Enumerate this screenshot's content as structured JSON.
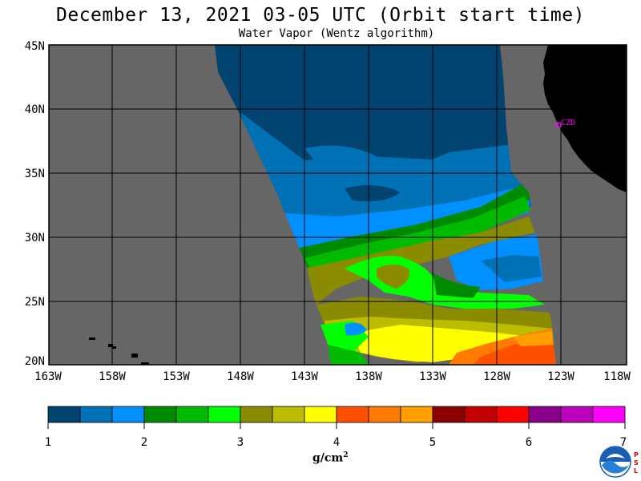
{
  "title": "December 13, 2021  03-05 UTC  (Orbit start time)",
  "subtitle": "Water Vapor (Wentz algorithm)",
  "lat_labels": [
    "45N",
    "40N",
    "35N",
    "30N",
    "25N",
    "20N"
  ],
  "lon_labels": [
    "163W",
    "158W",
    "153W",
    "148W",
    "143W",
    "138W",
    "133W",
    "128W",
    "123W",
    "118W"
  ],
  "station_label": "CZD",
  "colorbar": {
    "tick_labels": [
      "1",
      "2",
      "3",
      "4",
      "5",
      "6",
      "7"
    ],
    "units_base": "g/cm",
    "units_exp": "2",
    "colors": [
      "#00446f",
      "#0071b5",
      "#0090ff",
      "#008a00",
      "#00bb00",
      "#00ff00",
      "#8b8b00",
      "#bcbc00",
      "#ffff00",
      "#ff5000",
      "#ff7a00",
      "#ffa000",
      "#8b0000",
      "#c30000",
      "#ff0000",
      "#8b008b",
      "#bc00bc",
      "#ff00ff"
    ]
  },
  "colors": {
    "no_data": "#666666",
    "land": "#000000",
    "station": "#ff00ff"
  },
  "logo": {
    "name": "NOAA",
    "side_text": "PSL"
  }
}
